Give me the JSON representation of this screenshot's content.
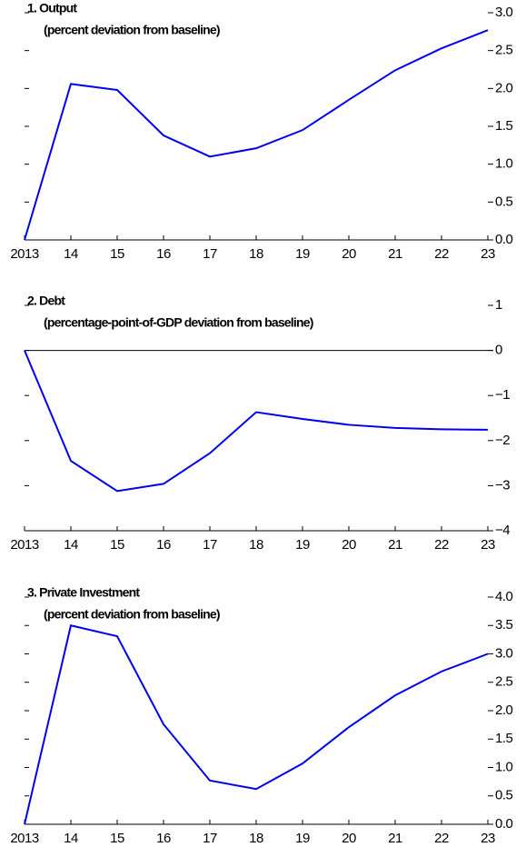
{
  "chart_data": [
    {
      "type": "line",
      "title": "1. Output",
      "subtitle": "(percent deviation from baseline)",
      "categories": [
        "2013",
        "14",
        "15",
        "16",
        "17",
        "18",
        "19",
        "20",
        "21",
        "22",
        "23"
      ],
      "series": [
        {
          "name": "Output",
          "color": "#0000ee",
          "values": [
            0,
            2.06,
            1.98,
            1.38,
            1.1,
            1.21,
            1.45,
            1.85,
            2.24,
            2.53,
            2.77
          ]
        }
      ],
      "ylim": [
        0,
        3
      ],
      "yticks": [
        {
          "value": 0,
          "label": "0.0"
        },
        0.5,
        {
          "value": 1,
          "label": "1.0"
        },
        1.5,
        {
          "value": 2,
          "label": "2.0"
        },
        2.5,
        {
          "value": 3,
          "label": "3.0"
        }
      ]
    },
    {
      "type": "line",
      "title": "2. Debt",
      "subtitle": "(percentage-point-of-GDP deviation from baseline)",
      "categories": [
        "2013",
        "14",
        "15",
        "16",
        "17",
        "18",
        "19",
        "20",
        "21",
        "22",
        "23"
      ],
      "series": [
        {
          "name": "Debt",
          "color": "#0000ee",
          "values": [
            0,
            -2.45,
            -3.12,
            -2.96,
            -2.28,
            -1.37,
            -1.52,
            -1.65,
            -1.72,
            -1.75,
            -1.76
          ]
        }
      ],
      "ylim": [
        -4,
        1
      ],
      "yticks": [
        {
          "value": -4,
          "label": "−4"
        },
        {
          "value": -3,
          "label": "−3"
        },
        {
          "value": -2,
          "label": "−2"
        },
        {
          "value": -1,
          "label": "−1"
        },
        0,
        1
      ],
      "zero_line": true
    },
    {
      "type": "line",
      "title": "3. Private Investment",
      "subtitle": "(percent deviation from baseline)",
      "categories": [
        "2013",
        "14",
        "15",
        "16",
        "17",
        "18",
        "19",
        "20",
        "21",
        "22",
        "23"
      ],
      "series": [
        {
          "name": "Private Investment",
          "color": "#0000ee",
          "values": [
            0,
            3.5,
            3.31,
            1.76,
            0.77,
            0.62,
            1.07,
            1.71,
            2.27,
            2.69,
            3.0
          ]
        }
      ],
      "ylim": [
        0,
        4
      ],
      "yticks": [
        {
          "value": 0,
          "label": "0.0"
        },
        0.5,
        {
          "value": 1,
          "label": "1.0"
        },
        1.5,
        {
          "value": 2,
          "label": "2.0"
        },
        2.5,
        {
          "value": 3,
          "label": "3.0"
        },
        3.5,
        {
          "value": 4,
          "label": "4.0"
        }
      ]
    }
  ]
}
